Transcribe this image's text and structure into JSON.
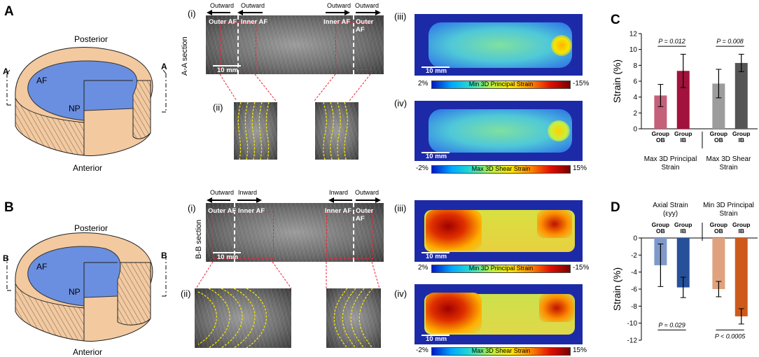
{
  "panels": {
    "A": {
      "letter": "A",
      "posterior": "Posterior",
      "anterior": "Anterior",
      "af": "AF",
      "np": "NP",
      "section_mark": "A"
    },
    "B": {
      "letter": "B",
      "posterior": "Posterior",
      "anterior": "Anterior",
      "af": "AF",
      "np": "NP",
      "section_mark": "B"
    },
    "C": {
      "letter": "C"
    },
    "D": {
      "letter": "D"
    }
  },
  "row_a": {
    "i": "(i)",
    "ii": "(ii)",
    "iii": "(iii)",
    "iv": "(iv)",
    "section_label": "A-A section",
    "arrow_labels": [
      "Outward",
      "Outward",
      "Outward",
      "Outward"
    ],
    "region_labels": {
      "outer_left": "Outer AF",
      "inner_left": "Inner AF",
      "inner_right": "Inner AF",
      "outer_right": "Outer AF"
    },
    "scale_label": "10 mm",
    "cbar1": {
      "title": "Min 3D Principal Strain",
      "left": "2%",
      "right": "-15%"
    },
    "cbar2": {
      "title": "Max 3D Shear Strain",
      "left": "-2%",
      "right": "15%"
    }
  },
  "row_b": {
    "i": "(i)",
    "ii": "(ii)",
    "iii": "(iii)",
    "iv": "(iv)",
    "section_label": "B-B section",
    "arrow_labels": [
      "Outward",
      "Inward",
      "Inward",
      "Outward"
    ],
    "region_labels": {
      "outer_left": "Outer AF",
      "inner_left": "Inner AF",
      "inner_right": "Inner AF",
      "outer_right": "Outer AF"
    },
    "scale_label": "10 mm",
    "cbar1": {
      "title": "Min 3D Principal Strain",
      "left": "2%",
      "right": "-15%"
    },
    "cbar2": {
      "title": "Max 3D Shear Strain",
      "left": "-2%",
      "right": "15%"
    }
  },
  "chart_data": [
    {
      "type": "bar",
      "ylabel": "Strain (%)",
      "ylim": [
        0,
        12
      ],
      "yticks": [
        0,
        2,
        4,
        6,
        8,
        10,
        12
      ],
      "groups": [
        {
          "name": "Max 3D Principal Strain",
          "p_value": "P = 0.012",
          "bars": [
            {
              "label": [
                "Group",
                "OB"
              ],
              "value": 4.2,
              "err": 1.4,
              "color": "#c4607a"
            },
            {
              "label": [
                "Group",
                "IB"
              ],
              "value": 7.3,
              "err": 2.1,
              "color": "#a3123c"
            }
          ]
        },
        {
          "name": "Max 3D Shear Strain",
          "p_value": "P = 0.008",
          "bars": [
            {
              "label": [
                "Group",
                "OB"
              ],
              "value": 5.7,
              "err": 1.8,
              "color": "#9c9c9c"
            },
            {
              "label": [
                "Group",
                "IB"
              ],
              "value": 8.3,
              "err": 1.1,
              "color": "#555555"
            }
          ]
        }
      ],
      "group_titles": [
        [
          "Max 3D Principal",
          "Strain"
        ],
        [
          "Max 3D Shear",
          "Strain"
        ]
      ]
    },
    {
      "type": "bar",
      "ylabel": "Strain (%)",
      "ylim": [
        -12,
        0
      ],
      "yticks": [
        0,
        -2,
        -4,
        -6,
        -8,
        -10,
        -12
      ],
      "groups": [
        {
          "name": "Axial Strain (εyy)",
          "p_value": "P = 0.029",
          "bars": [
            {
              "label": [
                "Group",
                "OB"
              ],
              "value": -3.2,
              "err": 2.5,
              "color": "#7f9ac8"
            },
            {
              "label": [
                "Group",
                "IB"
              ],
              "value": -5.8,
              "err": 1.2,
              "color": "#27509a"
            }
          ]
        },
        {
          "name": "Min 3D Principal Strain",
          "p_value": "P < 0.0005",
          "bars": [
            {
              "label": [
                "Group",
                "OB"
              ],
              "value": -6.0,
              "err": 0.9,
              "color": "#e0a27e"
            },
            {
              "label": [
                "Group",
                "IB"
              ],
              "value": -9.2,
              "err": 0.9,
              "color": "#cd5a1c"
            }
          ]
        }
      ],
      "group_titles": [
        [
          "Axial Strain",
          "(εyy)"
        ],
        [
          "Min 3D Principal",
          "Strain"
        ]
      ]
    }
  ]
}
